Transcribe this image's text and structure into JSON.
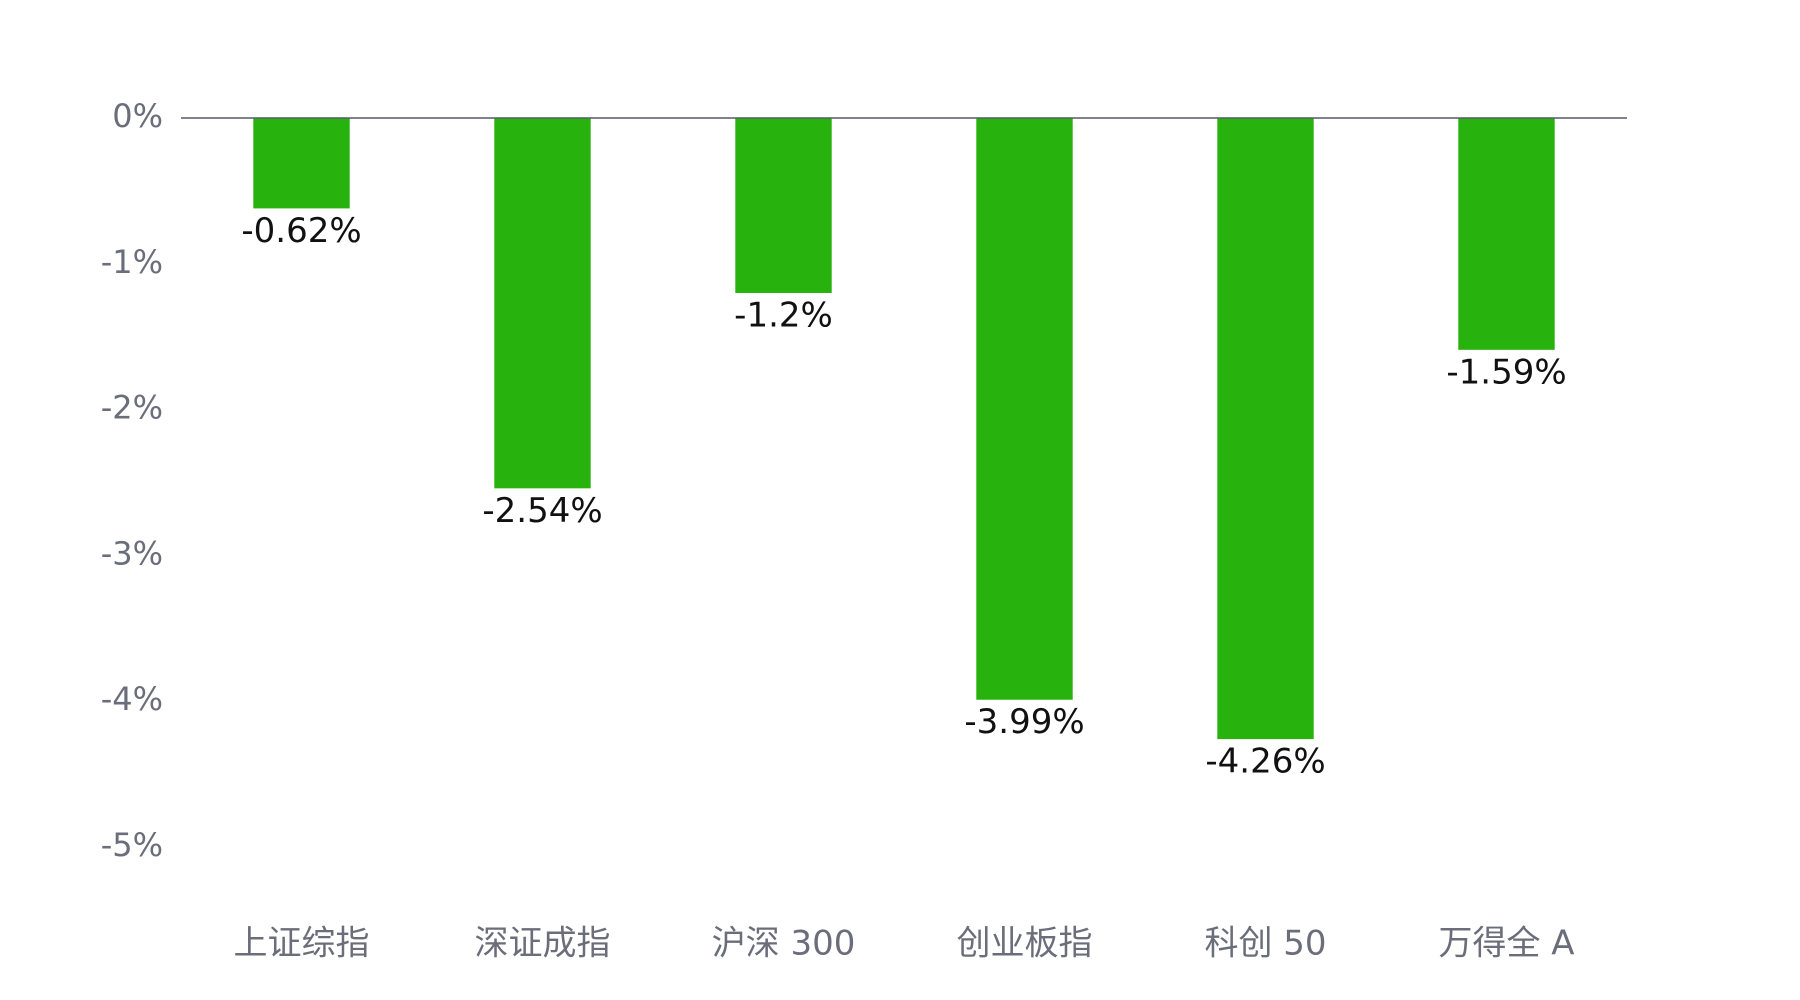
{
  "chart_data": {
    "type": "bar",
    "categories": [
      "上证综指",
      "深证成指",
      "沪深 300",
      "创业板指",
      "科创 50",
      "万得全 A"
    ],
    "values": [
      -0.62,
      -2.54,
      -1.2,
      -3.99,
      -4.26,
      -1.59
    ],
    "value_labels": [
      "-0.62%",
      "-2.54%",
      "-1.2%",
      "-3.99%",
      "-4.26%",
      "-1.59%"
    ],
    "color": "#27b20e",
    "ylim": [
      -5,
      0
    ],
    "yticks": [
      {
        "value": 0,
        "label": "0%"
      },
      {
        "value": -1,
        "label": "-1%"
      },
      {
        "value": -2,
        "label": "-2%"
      },
      {
        "value": -3,
        "label": "-3%"
      },
      {
        "value": -4,
        "label": "-4%"
      },
      {
        "value": -5,
        "label": "-5%"
      }
    ],
    "grid": false
  }
}
